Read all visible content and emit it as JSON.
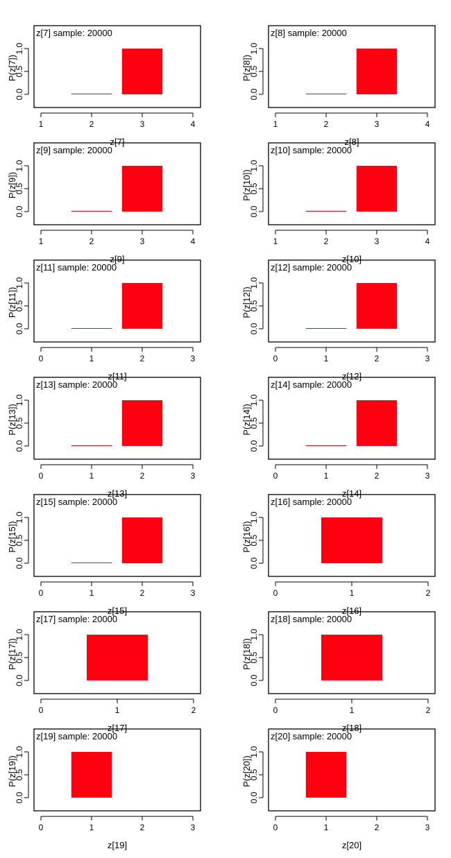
{
  "colors": {
    "bar": "#ff0010",
    "axis": "#000000",
    "background": "#ffffff"
  },
  "chart_data": [
    {
      "type": "bar",
      "title": "z[7] sample: 20000",
      "xlabel": "z[7]",
      "ylabel": "P(z[7])",
      "xticks": [
        1,
        2,
        3,
        4
      ],
      "yticks": [
        "0.0",
        "0.5",
        "1.0"
      ],
      "xlim": [
        1,
        4
      ],
      "ylim": [
        0,
        1
      ],
      "x": [
        2,
        3
      ],
      "values": [
        0.0005,
        0.9995
      ]
    },
    {
      "type": "bar",
      "title": "z[8] sample: 20000",
      "xlabel": "z[8]",
      "ylabel": "P(z[8])",
      "xticks": [
        1,
        2,
        3,
        4
      ],
      "yticks": [
        "0.0",
        "0.5",
        "1.0"
      ],
      "xlim": [
        1,
        4
      ],
      "ylim": [
        0,
        1
      ],
      "x": [
        2,
        3
      ],
      "values": [
        0.0005,
        0.9995
      ]
    },
    {
      "type": "bar",
      "title": "z[9] sample: 20000",
      "xlabel": "z[9]",
      "ylabel": "P(z[9])",
      "xticks": [
        1,
        2,
        3,
        4
      ],
      "yticks": [
        "0.0",
        "0.5",
        "1.0"
      ],
      "xlim": [
        1,
        4
      ],
      "ylim": [
        0,
        1
      ],
      "x": [
        2,
        3
      ],
      "values": [
        0.0005,
        0.9995
      ]
    },
    {
      "type": "bar",
      "title": "z[10] sample: 20000",
      "xlabel": "z[10]",
      "ylabel": "P(z[10])",
      "xticks": [
        1,
        2,
        3,
        4
      ],
      "yticks": [
        "0.0",
        "0.5",
        "1.0"
      ],
      "xlim": [
        1,
        4
      ],
      "ylim": [
        0,
        1
      ],
      "x": [
        2,
        3
      ],
      "values": [
        0.0005,
        0.9995
      ]
    },
    {
      "type": "bar",
      "title": "z[11] sample: 20000",
      "xlabel": "z[11]",
      "ylabel": "P(z[11])",
      "xticks": [
        0,
        1,
        2,
        3
      ],
      "yticks": [
        "0.0",
        "0.5",
        "1.0"
      ],
      "xlim": [
        0,
        3
      ],
      "ylim": [
        0,
        1
      ],
      "x": [
        1,
        2
      ],
      "values": [
        0.0005,
        0.9995
      ]
    },
    {
      "type": "bar",
      "title": "z[12] sample: 20000",
      "xlabel": "z[12]",
      "ylabel": "P(z[12])",
      "xticks": [
        0,
        1,
        2,
        3
      ],
      "yticks": [
        "0.0",
        "0.5",
        "1.0"
      ],
      "xlim": [
        0,
        3
      ],
      "ylim": [
        0,
        1
      ],
      "x": [
        1,
        2
      ],
      "values": [
        0.0005,
        0.9995
      ]
    },
    {
      "type": "bar",
      "title": "z[13] sample: 20000",
      "xlabel": "z[13]",
      "ylabel": "P(z[13])",
      "xticks": [
        0,
        1,
        2,
        3
      ],
      "yticks": [
        "0.0",
        "0.5",
        "1.0"
      ],
      "xlim": [
        0,
        3
      ],
      "ylim": [
        0,
        1
      ],
      "x": [
        1,
        2
      ],
      "values": [
        0.0005,
        0.9995
      ]
    },
    {
      "type": "bar",
      "title": "z[14] sample: 20000",
      "xlabel": "z[14]",
      "ylabel": "P(z[14])",
      "xticks": [
        0,
        1,
        2,
        3
      ],
      "yticks": [
        "0.0",
        "0.5",
        "1.0"
      ],
      "xlim": [
        0,
        3
      ],
      "ylim": [
        0,
        1
      ],
      "x": [
        1,
        2
      ],
      "values": [
        0.0005,
        0.9995
      ]
    },
    {
      "type": "bar",
      "title": "z[15] sample: 20000",
      "xlabel": "z[15]",
      "ylabel": "P(z[15])",
      "xticks": [
        0,
        1,
        2,
        3
      ],
      "yticks": [
        "0.0",
        "0.5",
        "1.0"
      ],
      "xlim": [
        0,
        3
      ],
      "ylim": [
        0,
        1
      ],
      "x": [
        1,
        2
      ],
      "values": [
        0.0005,
        0.9995
      ]
    },
    {
      "type": "bar",
      "title": "z[16] sample: 20000",
      "xlabel": "z[16]",
      "ylabel": "P(z[16])",
      "xticks": [
        0,
        1,
        2
      ],
      "yticks": [
        "0.0",
        "0.5",
        "1.0"
      ],
      "xlim": [
        0,
        2
      ],
      "ylim": [
        0,
        1
      ],
      "x": [
        1
      ],
      "values": [
        1.0
      ]
    },
    {
      "type": "bar",
      "title": "z[17] sample: 20000",
      "xlabel": "z[17]",
      "ylabel": "P(z[17])",
      "xticks": [
        0,
        1,
        2
      ],
      "yticks": [
        "0.0",
        "0.5",
        "1.0"
      ],
      "xlim": [
        0,
        2
      ],
      "ylim": [
        0,
        1
      ],
      "x": [
        1
      ],
      "values": [
        1.0
      ]
    },
    {
      "type": "bar",
      "title": "z[18] sample: 20000",
      "xlabel": "z[18]",
      "ylabel": "P(z[18])",
      "xticks": [
        0,
        1,
        2
      ],
      "yticks": [
        "0.0",
        "0.5",
        "1.0"
      ],
      "xlim": [
        0,
        2
      ],
      "ylim": [
        0,
        1
      ],
      "x": [
        1
      ],
      "values": [
        1.0
      ]
    },
    {
      "type": "bar",
      "title": "z[19] sample: 20000",
      "xlabel": "z[19]",
      "ylabel": "P(z[19])",
      "xticks": [
        0,
        1,
        2,
        3
      ],
      "yticks": [
        "0.0",
        "0.5",
        "1.0"
      ],
      "xlim": [
        0,
        3
      ],
      "ylim": [
        0,
        1
      ],
      "x": [
        1
      ],
      "values": [
        1.0
      ]
    },
    {
      "type": "bar",
      "title": "z[20] sample: 20000",
      "xlabel": "z[20]",
      "ylabel": "P(z[20])",
      "xticks": [
        0,
        1,
        2,
        3
      ],
      "yticks": [
        "0.0",
        "0.5",
        "1.0"
      ],
      "xlim": [
        0,
        3
      ],
      "ylim": [
        0,
        1
      ],
      "x": [
        1
      ],
      "values": [
        1.0
      ]
    }
  ]
}
